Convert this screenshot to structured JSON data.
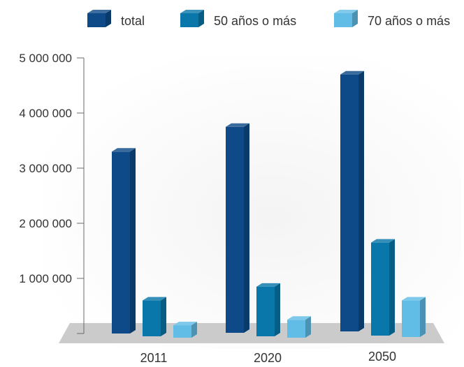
{
  "chart_data": {
    "type": "bar",
    "title": "",
    "xlabel": "",
    "ylabel": "",
    "categories": [
      "2011",
      "2020",
      "2050"
    ],
    "ylim": [
      0,
      5000000
    ],
    "yticks": [
      {
        "value": 1000000,
        "label": "1 000 000"
      },
      {
        "value": 2000000,
        "label": "2 000 000"
      },
      {
        "value": 3000000,
        "label": "3 000 000"
      },
      {
        "value": 4000000,
        "label": "4 000 000"
      },
      {
        "value": 5000000,
        "label": "5 000 000"
      }
    ],
    "series": [
      {
        "name": "total",
        "values": [
          3300000,
          3750000,
          4700000
        ]
      },
      {
        "name": "50 años o más",
        "values": [
          600000,
          850000,
          1650000
        ]
      },
      {
        "name": "70 años o más",
        "values": [
          150000,
          250000,
          600000
        ]
      }
    ],
    "colors": [
      "#0d4a87",
      "#0a77aa",
      "#62bde6"
    ],
    "legend_position": "top",
    "grid": false,
    "style": "3d-bars-with-floor"
  }
}
